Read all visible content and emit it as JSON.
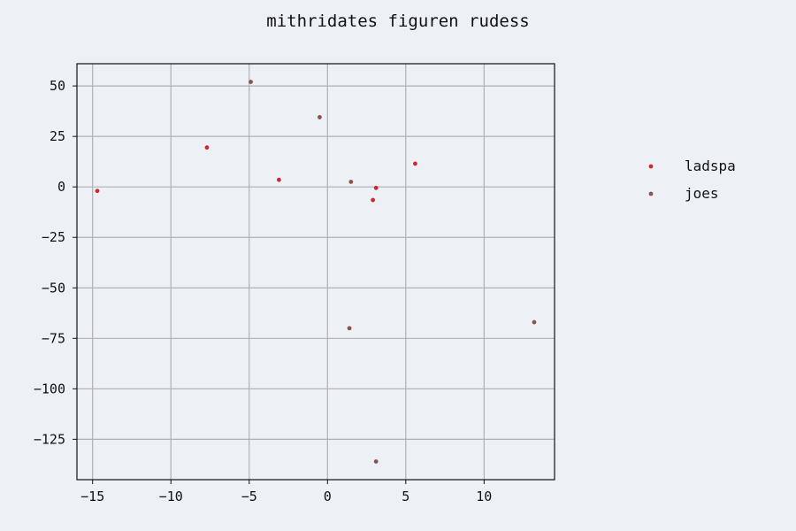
{
  "chart_data": {
    "type": "scatter",
    "title": "mithridates figuren rudess",
    "xlabel": "",
    "ylabel": "",
    "xlim": [
      -16.0,
      14.5
    ],
    "ylim": [
      -145,
      61
    ],
    "x_ticks": [
      -15,
      -10,
      -5,
      0,
      5,
      10
    ],
    "x_tick_labels": [
      "−15",
      "−10",
      "−5",
      "0",
      "5",
      "10"
    ],
    "y_ticks": [
      50,
      25,
      0,
      -25,
      -50,
      -75,
      -100,
      -125
    ],
    "y_tick_labels": [
      "50",
      "25",
      "0",
      "−25",
      "−50",
      "−75",
      "−100",
      "−125"
    ],
    "grid": true,
    "legend_position": "right, outside the plot",
    "series": [
      {
        "name": "ladspa",
        "color": "#cc2a2a",
        "points": [
          {
            "x": -14.7,
            "y": -2
          },
          {
            "x": -7.7,
            "y": 19.5
          },
          {
            "x": -3.1,
            "y": 3.5
          },
          {
            "x": 2.9,
            "y": -6.5
          },
          {
            "x": 3.1,
            "y": -0.5
          },
          {
            "x": 5.6,
            "y": 11.5
          }
        ]
      },
      {
        "name": "joes",
        "color": "#8b5347",
        "points": [
          {
            "x": -4.9,
            "y": 52
          },
          {
            "x": -0.5,
            "y": 34.5
          },
          {
            "x": 1.5,
            "y": 2.5
          },
          {
            "x": 1.4,
            "y": -70
          },
          {
            "x": 13.2,
            "y": -67
          },
          {
            "x": 3.1,
            "y": -136
          }
        ]
      }
    ]
  }
}
